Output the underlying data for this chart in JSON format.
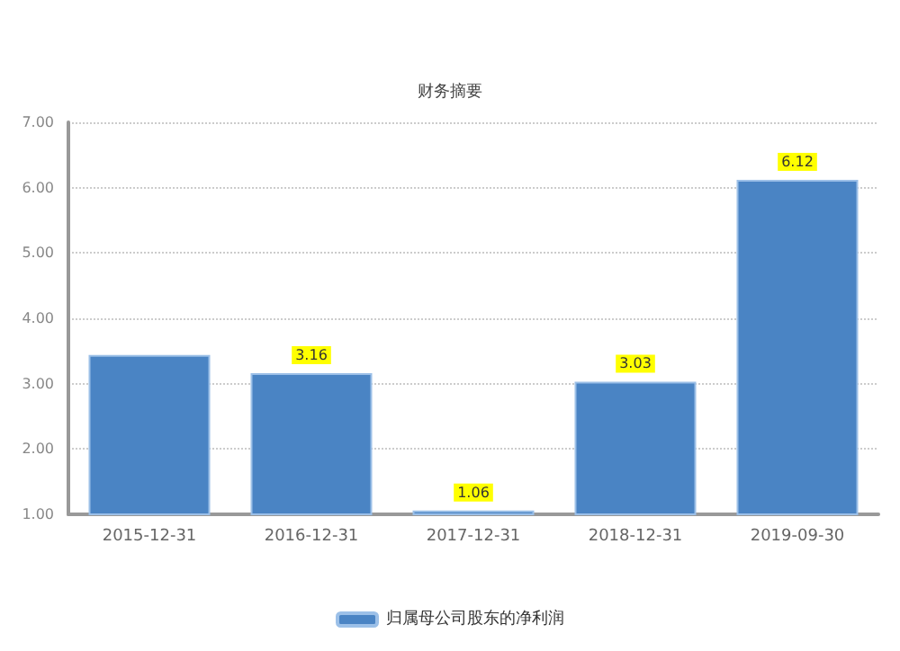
{
  "chart_data": {
    "type": "bar",
    "title": "财务摘要",
    "categories": [
      "2015-12-31",
      "2016-12-31",
      "2017-12-31",
      "2018-12-31",
      "2019-09-30"
    ],
    "series": [
      {
        "name": "归属母公司股东的净利润",
        "color": "#4a84c4",
        "values": [
          3.44,
          3.16,
          1.06,
          3.03,
          6.12
        ],
        "value_labels": [
          null,
          "3.16",
          "1.06",
          "3.03",
          "6.12"
        ]
      }
    ],
    "ylim": [
      1,
      7
    ],
    "yticks": [
      {
        "value": 1,
        "label": "1.00"
      },
      {
        "value": 2,
        "label": "2.00"
      },
      {
        "value": 3,
        "label": "3.00"
      },
      {
        "value": 4,
        "label": "4.00"
      },
      {
        "value": 5,
        "label": "5.00"
      },
      {
        "value": 6,
        "label": "6.00"
      },
      {
        "value": 7,
        "label": "7.00"
      }
    ],
    "grid": "y",
    "legend": "bottom"
  }
}
